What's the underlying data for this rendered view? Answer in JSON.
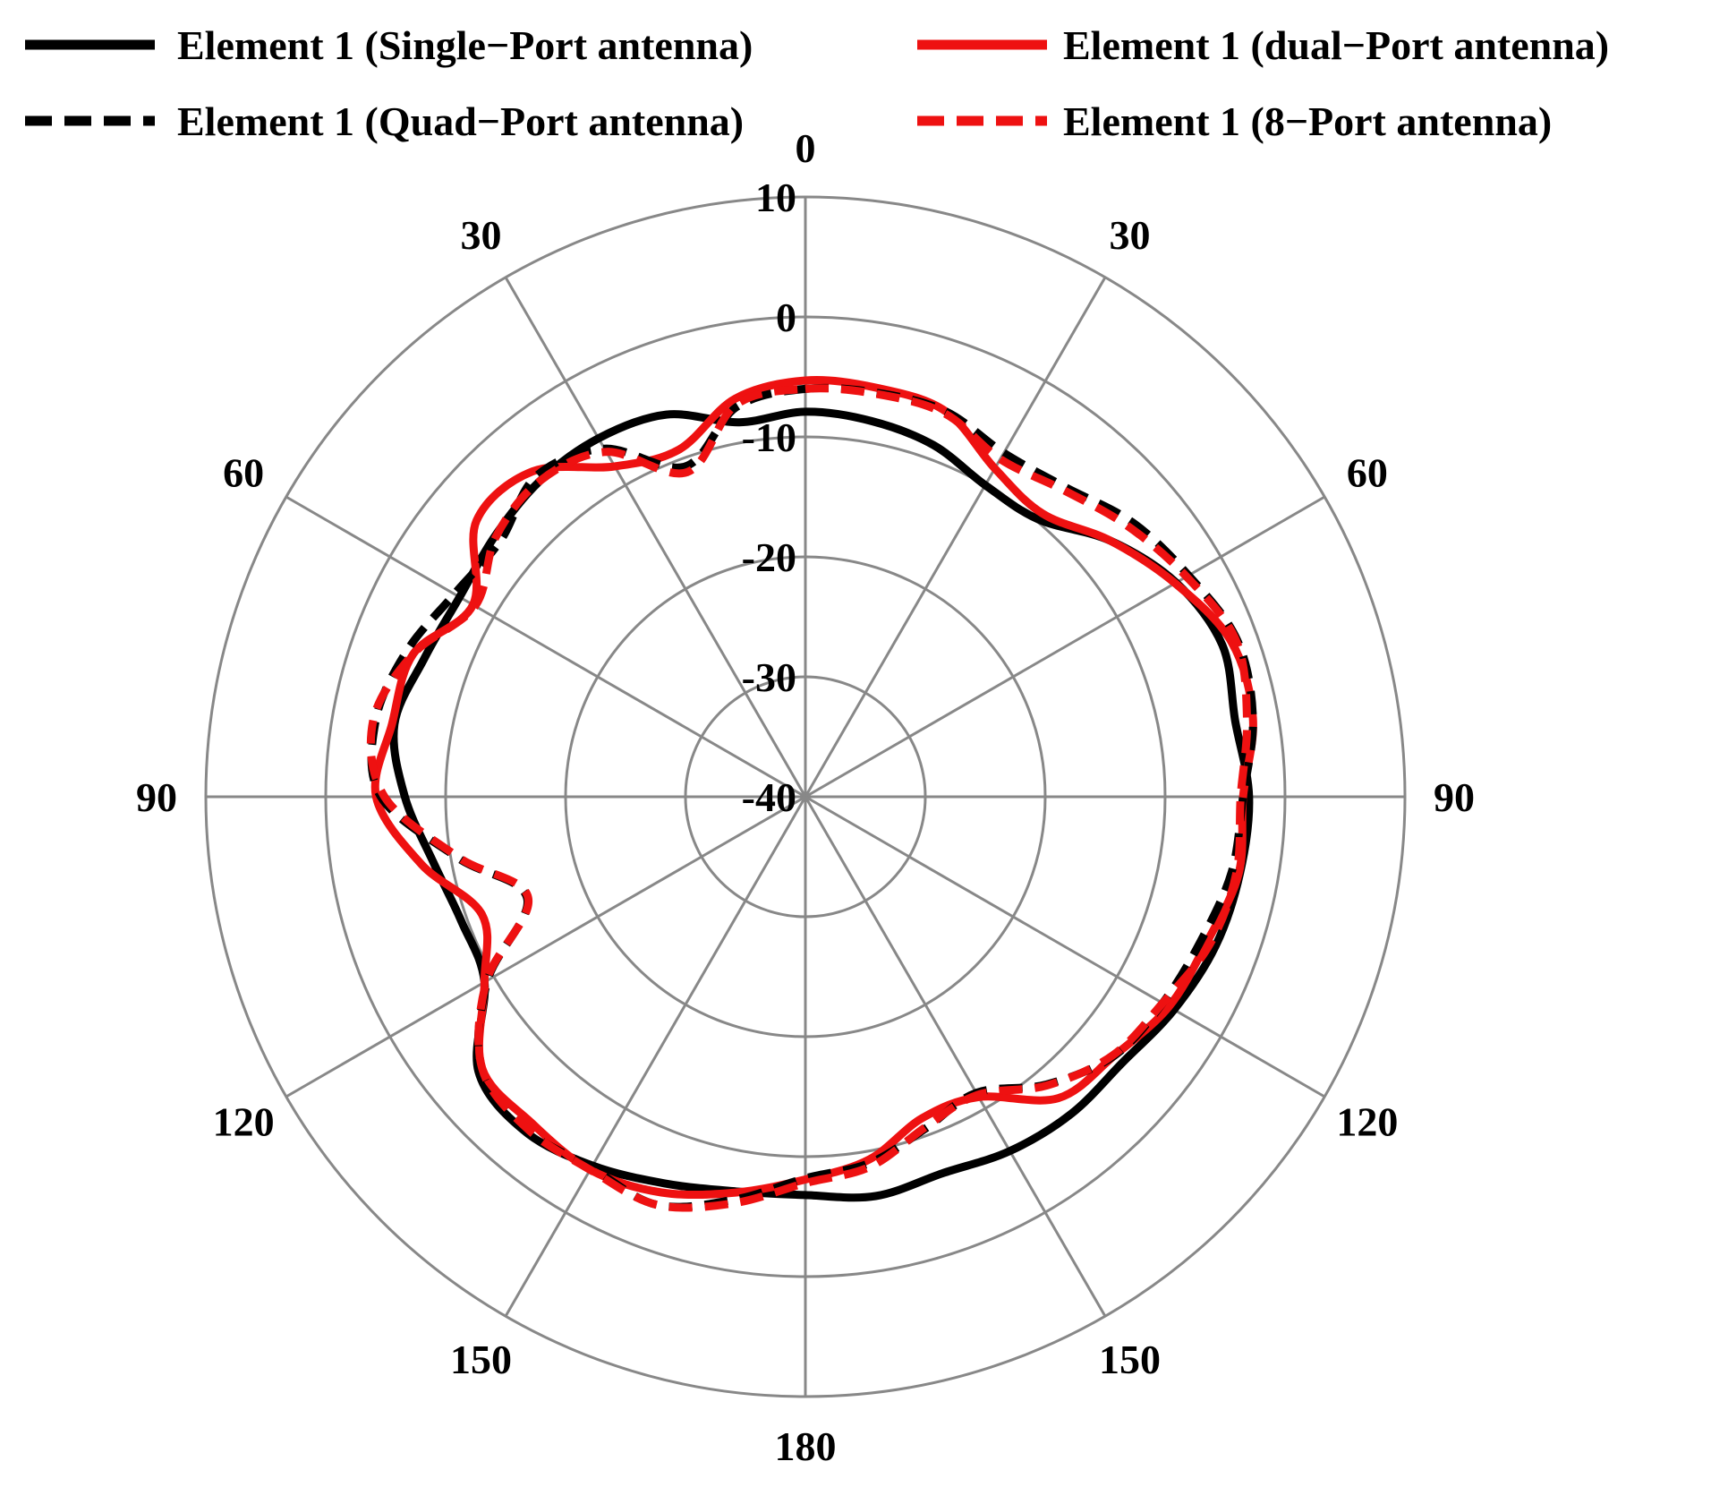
{
  "chart_data": {
    "type": "polar-line",
    "title": "",
    "radial_axis": {
      "min": -40,
      "max": 10,
      "ticks": [
        10,
        0,
        -10,
        -20,
        -30,
        -40
      ],
      "tick_labels": [
        "10",
        "0",
        "-10",
        "-20",
        "-30",
        "-40"
      ]
    },
    "angular_axis": {
      "spokes_deg": [
        0,
        30,
        60,
        90,
        120,
        150,
        180,
        210,
        240,
        270,
        300,
        330
      ],
      "labels": [
        {
          "deg": 0,
          "text": "0"
        },
        {
          "deg": 30,
          "text": "30"
        },
        {
          "deg": 60,
          "text": "60"
        },
        {
          "deg": 90,
          "text": "90"
        },
        {
          "deg": 120,
          "text": "120"
        },
        {
          "deg": 150,
          "text": "150"
        },
        {
          "deg": 180,
          "text": "180"
        },
        {
          "deg": 210,
          "text": "150"
        },
        {
          "deg": 240,
          "text": "120"
        },
        {
          "deg": 270,
          "text": "90"
        },
        {
          "deg": 300,
          "text": "60"
        },
        {
          "deg": 330,
          "text": "30"
        }
      ]
    },
    "grid": true,
    "legend_position": "top",
    "series": [
      {
        "name": "Element  1 (Single−Port antenna)",
        "color": "#000000",
        "style": "solid",
        "theta": [
          0,
          10,
          20,
          30,
          40,
          50,
          60,
          70,
          80,
          90,
          100,
          110,
          120,
          130,
          140,
          150,
          160,
          170,
          180,
          190,
          200,
          210,
          220,
          230,
          240,
          250,
          260,
          270,
          280,
          290,
          300,
          310,
          320,
          330,
          340,
          350,
          360
        ],
        "r": [
          -7.9,
          -8.2,
          -8.8,
          -10.0,
          -9.8,
          -6.8,
          -4.3,
          -3.0,
          -3.6,
          -3.0,
          -3.2,
          -3.6,
          -4.5,
          -5.5,
          -5.5,
          -5.9,
          -6.6,
          -6.2,
          -6.8,
          -6.6,
          -5.7,
          -4.5,
          -3.6,
          -4.4,
          -9.1,
          -9.5,
          -8.5,
          -6.6,
          -5.2,
          -6.2,
          -6.7,
          -6.2,
          -5.6,
          -5.5,
          -6.1,
          -8.3,
          -7.9
        ]
      },
      {
        "name": "Element  1 (dual−Port  antenna)",
        "color": "#ee1111",
        "style": "solid",
        "theta": [
          0,
          10,
          20,
          30,
          40,
          50,
          60,
          70,
          80,
          90,
          100,
          110,
          120,
          130,
          140,
          150,
          160,
          170,
          180,
          190,
          200,
          210,
          220,
          230,
          240,
          250,
          260,
          270,
          280,
          290,
          300,
          310,
          320,
          330,
          340,
          350,
          360
        ],
        "r": [
          -5.3,
          -5.4,
          -5.8,
          -8.4,
          -9.2,
          -6.8,
          -4.4,
          -2.2,
          -2.1,
          -3.5,
          -3.3,
          -4.4,
          -5.0,
          -6.4,
          -7.2,
          -11.1,
          -11.5,
          -9.3,
          -8.1,
          -6.5,
          -4.9,
          -4.1,
          -4.5,
          -4.8,
          -9.1,
          -11.3,
          -7.5,
          -4.2,
          -5.0,
          -5.2,
          -8.0,
          -4.2,
          -4.6,
          -8.2,
          -9.2,
          -6.3,
          -5.3
        ]
      },
      {
        "name": "Element  1 (Quad−Port  antenna)",
        "color": "#000000",
        "style": "dashed",
        "theta": [
          0,
          10,
          20,
          30,
          40,
          50,
          60,
          70,
          80,
          90,
          100,
          110,
          120,
          130,
          140,
          150,
          160,
          170,
          180,
          190,
          200,
          210,
          220,
          230,
          240,
          250,
          260,
          270,
          280,
          290,
          300,
          310,
          320,
          330,
          340,
          350,
          360
        ],
        "r": [
          -6.0,
          -5.8,
          -5.8,
          -6.9,
          -6.3,
          -4.4,
          -3.1,
          -1.7,
          -2.1,
          -3.5,
          -3.9,
          -4.9,
          -5.6,
          -6.4,
          -8.7,
          -11.5,
          -10.6,
          -9.0,
          -8.2,
          -5.9,
          -3.8,
          -4.3,
          -3.8,
          -4.7,
          -9.4,
          -15.3,
          -10.6,
          -4.6,
          -3.6,
          -4.6,
          -6.2,
          -6.8,
          -5.1,
          -6.5,
          -10.7,
          -7.0,
          -6.0
        ]
      },
      {
        "name": "Element  1 (8−Port antenna)",
        "color": "#ee1111",
        "style": "dashed",
        "theta": [
          0,
          10,
          20,
          30,
          40,
          50,
          60,
          70,
          80,
          90,
          100,
          110,
          120,
          130,
          140,
          150,
          160,
          170,
          180,
          190,
          200,
          210,
          220,
          230,
          240,
          250,
          260,
          270,
          280,
          290,
          300,
          310,
          320,
          330,
          340,
          350,
          360
        ],
        "r": [
          -6.0,
          -5.9,
          -6.0,
          -7.5,
          -6.6,
          -4.9,
          -3.3,
          -1.8,
          -2.6,
          -3.7,
          -3.5,
          -4.1,
          -5.6,
          -6.5,
          -8.6,
          -11.3,
          -10.7,
          -8.7,
          -7.8,
          -5.6,
          -3.8,
          -4.1,
          -3.9,
          -4.8,
          -9.3,
          -15.4,
          -10.7,
          -4.9,
          -3.4,
          -5.2,
          -8.2,
          -6.3,
          -5.6,
          -6.8,
          -11.2,
          -6.8,
          -6.0
        ]
      }
    ]
  }
}
